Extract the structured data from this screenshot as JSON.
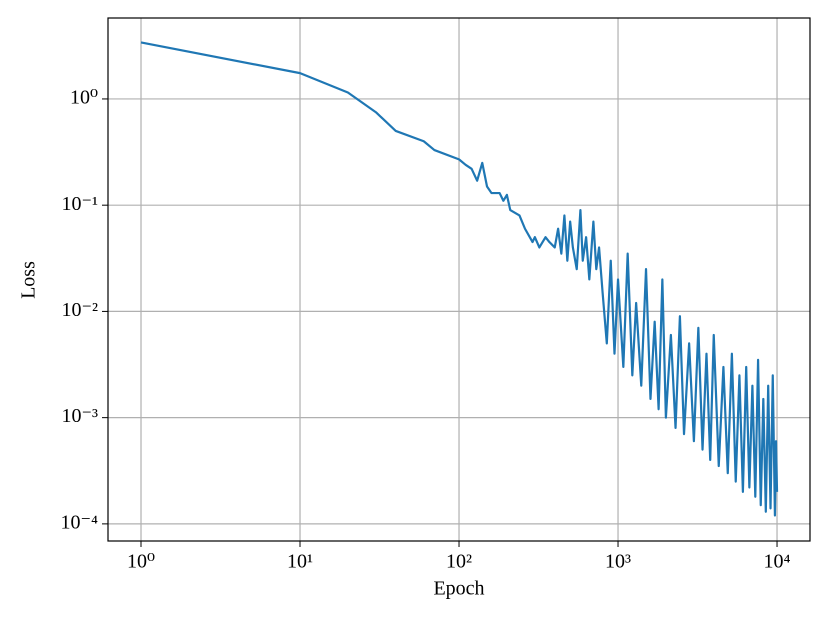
{
  "chart_data": {
    "type": "line",
    "xlabel": "Epoch",
    "ylabel": "Loss",
    "x": [
      1,
      10,
      20,
      30,
      40,
      60,
      70,
      100,
      110,
      120,
      130,
      140,
      150,
      160,
      180,
      190,
      200,
      210,
      240,
      260,
      290,
      300,
      320,
      350,
      370,
      400,
      420,
      440,
      460,
      480,
      500,
      520,
      550,
      580,
      600,
      630,
      660,
      700,
      730,
      760,
      800,
      850,
      900,
      950,
      1000,
      1080,
      1150,
      1230,
      1300,
      1400,
      1500,
      1600,
      1700,
      1800,
      1900,
      2000,
      2150,
      2300,
      2450,
      2600,
      2800,
      3000,
      3200,
      3400,
      3600,
      3800,
      4000,
      4300,
      4600,
      4900,
      5200,
      5500,
      5800,
      6100,
      6400,
      6700,
      7000,
      7300,
      7600,
      7900,
      8200,
      8500,
      8800,
      9100,
      9400,
      9700,
      9850,
      10000
    ],
    "values": [
      3.4,
      1.75,
      1.15,
      0.75,
      0.5,
      0.4,
      0.33,
      0.27,
      0.24,
      0.22,
      0.17,
      0.25,
      0.15,
      0.13,
      0.13,
      0.11,
      0.125,
      0.09,
      0.08,
      0.06,
      0.045,
      0.05,
      0.04,
      0.05,
      0.045,
      0.04,
      0.06,
      0.035,
      0.08,
      0.03,
      0.07,
      0.04,
      0.025,
      0.09,
      0.03,
      0.05,
      0.02,
      0.07,
      0.025,
      0.04,
      0.015,
      0.005,
      0.03,
      0.004,
      0.02,
      0.003,
      0.035,
      0.0025,
      0.012,
      0.002,
      0.025,
      0.0015,
      0.008,
      0.0012,
      0.02,
      0.001,
      0.006,
      0.0008,
      0.009,
      0.0007,
      0.005,
      0.0006,
      0.007,
      0.0005,
      0.004,
      0.0004,
      0.006,
      0.00035,
      0.003,
      0.0003,
      0.004,
      0.00025,
      0.0025,
      0.0002,
      0.003,
      0.00022,
      0.002,
      0.00018,
      0.0035,
      0.00015,
      0.0015,
      0.00013,
      0.002,
      0.00014,
      0.0025,
      0.00012,
      0.0006,
      0.0002
    ],
    "color": "#1f77b4",
    "xscale": "log",
    "yscale": "log",
    "grid": true,
    "xlim": [
      0.62,
      16120
    ],
    "ylim": [
      6.9e-05,
      5.78
    ],
    "xticks": [
      {
        "value": 1,
        "label": "10⁰"
      },
      {
        "value": 10,
        "label": "10¹"
      },
      {
        "value": 100,
        "label": "10²"
      },
      {
        "value": 1000,
        "label": "10³"
      },
      {
        "value": 10000,
        "label": "10⁴"
      }
    ],
    "yticks": [
      {
        "value": 1,
        "label": "10⁰"
      },
      {
        "value": 0.1,
        "label": "10⁻¹"
      },
      {
        "value": 0.01,
        "label": "10⁻²"
      },
      {
        "value": 0.001,
        "label": "10⁻³"
      },
      {
        "value": 0.0001,
        "label": "10⁻⁴"
      }
    ]
  }
}
